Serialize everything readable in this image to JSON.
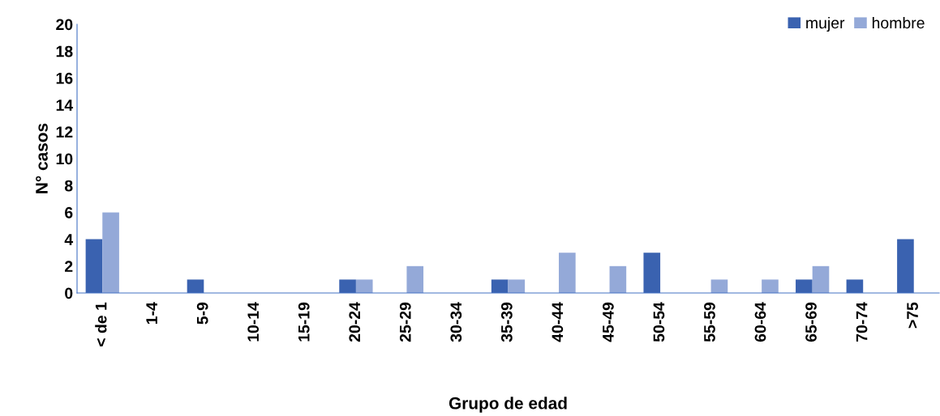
{
  "chart_data": {
    "type": "bar",
    "xlabel": "Grupo de edad",
    "ylabel": "N° casos",
    "categories": [
      "< de 1",
      "1-4",
      "5-9",
      "10-14",
      "15-19",
      "20-24",
      "25-29",
      "30-34",
      "35-39",
      "40-44",
      "45-49",
      "50-54",
      "55-59",
      "60-64",
      "65-69",
      "70-74",
      ">75"
    ],
    "series": [
      {
        "name": "mujer",
        "color": "#3a62b0",
        "values": [
          4,
          0,
          1,
          0,
          0,
          1,
          0,
          0,
          1,
          0,
          0,
          3,
          0,
          0,
          1,
          1,
          4
        ]
      },
      {
        "name": "hombre",
        "color": "#94a9d8",
        "values": [
          6,
          0,
          0,
          0,
          0,
          1,
          2,
          0,
          1,
          3,
          2,
          0,
          1,
          1,
          2,
          0,
          0
        ]
      }
    ],
    "ylim": [
      0,
      20
    ],
    "yticks": [
      0,
      2,
      4,
      6,
      8,
      10,
      12,
      14,
      16,
      18,
      20
    ],
    "grid": false,
    "legend": "top right"
  }
}
